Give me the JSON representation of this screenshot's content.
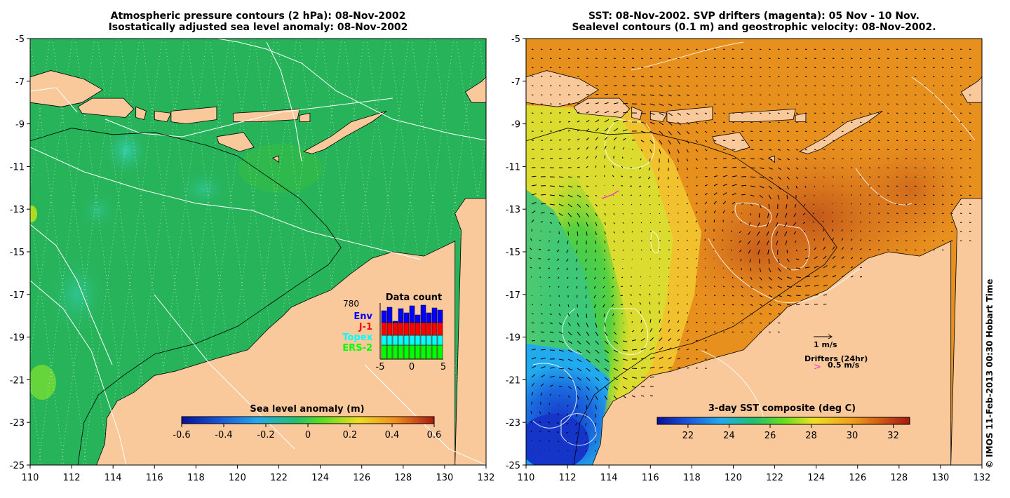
{
  "left_panel": {
    "title_line1": "Atmospheric pressure contours (2 hPa): 08-Nov-2002",
    "title_line2": "Isostatically adjusted sea level anomaly: 08-Nov-2002",
    "colorbar_label": "Sea level anomaly (m)",
    "colorbar_ticks": [
      "-0.6",
      "-0.4",
      "-0.2",
      "0",
      "0.2",
      "0.4",
      "0.6"
    ],
    "inset": {
      "title": "Data count",
      "max_count": "780",
      "legend": [
        {
          "label": "Env",
          "color": "#0000ff"
        },
        {
          "label": "J-1",
          "color": "#ff0000"
        },
        {
          "label": "Topex",
          "color": "#00ffff"
        },
        {
          "label": "ERS-2",
          "color": "#00ff00"
        }
      ],
      "x_ticks": [
        "-5",
        "0",
        "5"
      ]
    }
  },
  "right_panel": {
    "title_line1": "SST: 08-Nov-2002. SVP drifters (magenta): 05 Nov - 10 Nov.",
    "title_line2": "Sealevel contours (0.1 m) and geostrophic velocity: 08-Nov-2002.",
    "colorbar_label": "3-day SST composite (deg C)",
    "colorbar_ticks": [
      "22",
      "24",
      "26",
      "28",
      "30",
      "32"
    ],
    "velocity_scale_label": "1 m/s",
    "drifter_label": "Drifters (24hr)",
    "drifter_scale_label": "0.5 m/s",
    "drifter_glyph": ">"
  },
  "axes": {
    "x_ticks": [
      "110",
      "112",
      "114",
      "116",
      "118",
      "120",
      "122",
      "124",
      "126",
      "128",
      "130",
      "132"
    ],
    "y_ticks": [
      "-5",
      "-7",
      "-9",
      "-11",
      "-13",
      "-15",
      "-17",
      "-19",
      "-21",
      "-23",
      "-25"
    ]
  },
  "copyright": "© IMOS 11-Feb-2013 00:30 Hobart Time",
  "colors": {
    "land": "#f9c99c",
    "sla_ocean": "#27b35a",
    "sst_warm": "#e8901e",
    "sst_cool": "#1a3fd0"
  }
}
